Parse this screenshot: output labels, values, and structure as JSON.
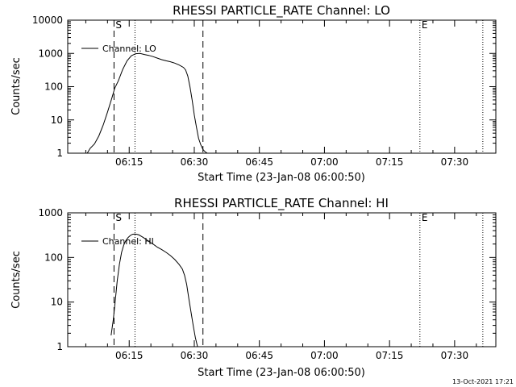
{
  "footer": {
    "timestamp": "13-Oct-2021 17:21"
  },
  "colors": {
    "foreground": "#000000",
    "background": "#ffffff"
  },
  "chart_data": [
    {
      "type": "line",
      "title": "RHESSI PARTICLE_RATE Channel: LO",
      "xlabel": "Start Time (23-Jan-08 06:00:50)",
      "ylabel": "Counts/sec",
      "yscale": "log",
      "xlim": [
        "06:00:50",
        "07:39:30"
      ],
      "ylim": [
        1,
        10000
      ],
      "xticks": [
        "06:15",
        "06:30",
        "06:45",
        "07:00",
        "07:15",
        "07:30"
      ],
      "yticks": [
        "1",
        "10",
        "100",
        "1000",
        "10000"
      ],
      "legend": {
        "position": "top-left",
        "entries": [
          "Channel: LO"
        ]
      },
      "series": [
        {
          "name": "Channel: LO",
          "x": [
            "06:05:20",
            "06:06:00",
            "06:07:00",
            "06:08:00",
            "06:09:00",
            "06:10:00",
            "06:11:00",
            "06:11:40",
            "06:12:30",
            "06:13:30",
            "06:14:30",
            "06:15:30",
            "06:16:30",
            "06:17:30",
            "06:18:30",
            "06:19:30",
            "06:20:30",
            "06:21:30",
            "06:22:30",
            "06:23:30",
            "06:24:30",
            "06:25:30",
            "06:26:30",
            "06:27:30",
            "06:28:00",
            "06:28:30",
            "06:29:00",
            "06:29:30",
            "06:30:00",
            "06:30:30",
            "06:31:00",
            "06:31:30",
            "06:32:00",
            "06:32:30",
            "06:33:00"
          ],
          "y": [
            1.0,
            1.4,
            1.9,
            3.3,
            7.0,
            17,
            45,
            90,
            150,
            330,
            600,
            850,
            980,
            1000,
            930,
            870,
            800,
            720,
            650,
            600,
            560,
            510,
            450,
            380,
            320,
            210,
            100,
            40,
            14,
            6.0,
            2.8,
            1.8,
            1.3,
            1.1,
            1.0
          ]
        }
      ],
      "markers": [
        {
          "label": "S",
          "time": "06:11:30",
          "style": "dashed"
        },
        {
          "label": "",
          "time": "06:16:20",
          "style": "dotted"
        },
        {
          "label": "",
          "time": "06:32:00",
          "style": "dashed"
        },
        {
          "label": "E",
          "time": "07:22:00",
          "style": "dotted"
        },
        {
          "label": "",
          "time": "07:36:30",
          "style": "dotted"
        }
      ]
    },
    {
      "type": "line",
      "title": "RHESSI PARTICLE_RATE Channel: HI",
      "xlabel": "Start Time (23-Jan-08 06:00:50)",
      "ylabel": "Counts/sec",
      "yscale": "log",
      "xlim": [
        "06:00:50",
        "07:39:30"
      ],
      "ylim": [
        1,
        1000
      ],
      "xticks": [
        "06:15",
        "06:30",
        "06:45",
        "07:00",
        "07:15",
        "07:30"
      ],
      "yticks": [
        "1",
        "10",
        "100",
        "1000"
      ],
      "legend": {
        "position": "top-left",
        "entries": [
          "Channel: HI"
        ]
      },
      "series": [
        {
          "name": "Channel: HI",
          "x": [
            "06:10:50",
            "06:11:20",
            "06:11:45",
            "06:12:15",
            "06:12:45",
            "06:13:15",
            "06:13:45",
            "06:14:15",
            "06:14:45",
            "06:15:15",
            "06:15:45",
            "06:16:15",
            "06:16:45",
            "06:17:15",
            "06:17:45",
            "06:18:15",
            "06:18:45",
            "06:19:15",
            "06:19:45",
            "06:20:30",
            "06:21:30",
            "06:22:30",
            "06:23:30",
            "06:24:30",
            "06:25:30",
            "06:26:30",
            "06:27:15",
            "06:27:45",
            "06:28:15",
            "06:28:45",
            "06:29:15",
            "06:29:45",
            "06:30:15",
            "06:30:45"
          ],
          "y": [
            1.8,
            4.0,
            10,
            30,
            70,
            130,
            190,
            240,
            280,
            310,
            330,
            335,
            330,
            320,
            300,
            280,
            260,
            240,
            220,
            200,
            170,
            150,
            130,
            110,
            90,
            70,
            55,
            40,
            25,
            12,
            6.0,
            3.0,
            1.6,
            1.0
          ]
        }
      ],
      "markers": [
        {
          "label": "S",
          "time": "06:11:30",
          "style": "dashed"
        },
        {
          "label": "",
          "time": "06:16:20",
          "style": "dotted"
        },
        {
          "label": "",
          "time": "06:32:00",
          "style": "dashed"
        },
        {
          "label": "E",
          "time": "07:22:00",
          "style": "dotted"
        },
        {
          "label": "",
          "time": "07:36:30",
          "style": "dotted"
        }
      ]
    }
  ]
}
